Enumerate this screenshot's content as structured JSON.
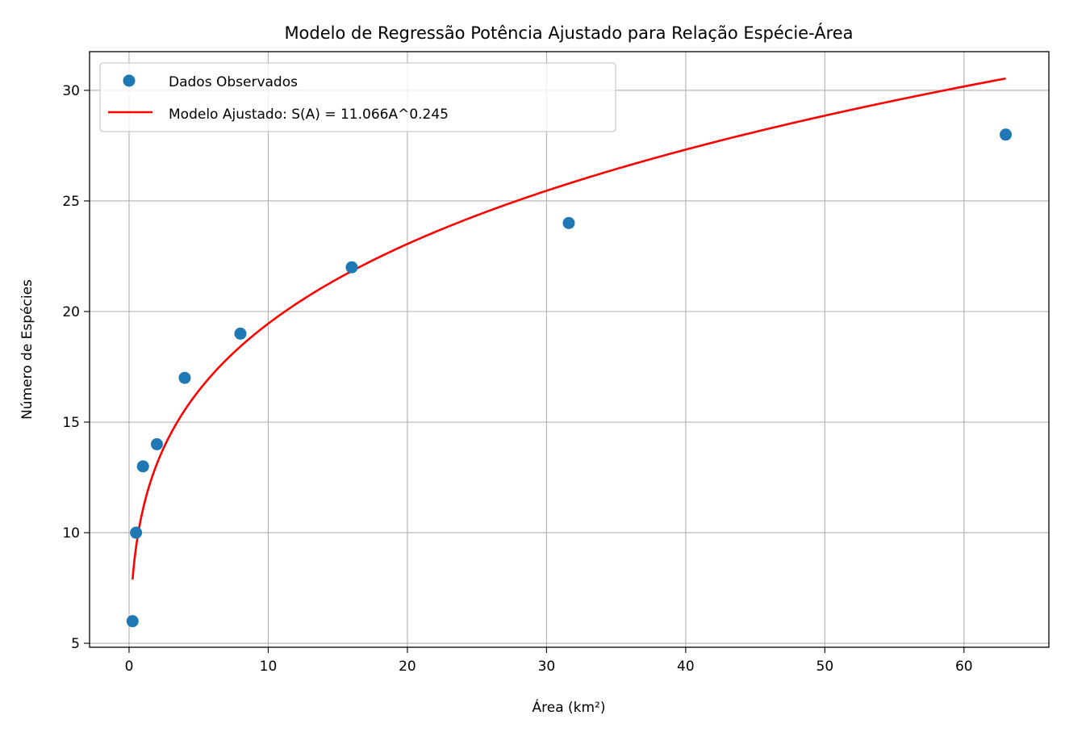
{
  "chart_data": {
    "type": "scatter",
    "title": "Modelo de Regressão Potência Ajustado para Relação Espécie-Área",
    "xlabel": "Área (km²)",
    "ylabel": "Número de Espécies",
    "xlim": [
      -2.84,
      66.1
    ],
    "ylim": [
      4.82,
      31.75
    ],
    "xticks": [
      0,
      10,
      20,
      30,
      40,
      50,
      60
    ],
    "yticks": [
      5,
      10,
      15,
      20,
      25,
      30
    ],
    "grid": true,
    "legend_position": "top-left",
    "series": [
      {
        "name": "Dados Observados",
        "kind": "scatter",
        "color": "#1f77b4",
        "x": [
          0.25,
          0.5,
          1,
          2,
          4,
          8,
          16,
          31.6,
          63
        ],
        "y": [
          6,
          10,
          13,
          14,
          17,
          19,
          22,
          24,
          28
        ]
      },
      {
        "name": "Modelo Ajustado: S(A) = 11.066A^0.245",
        "kind": "line",
        "color": "#ff0000",
        "model": {
          "a": 11.066,
          "b": 0.245,
          "x_start": 0.25,
          "x_end": 63
        }
      }
    ]
  }
}
